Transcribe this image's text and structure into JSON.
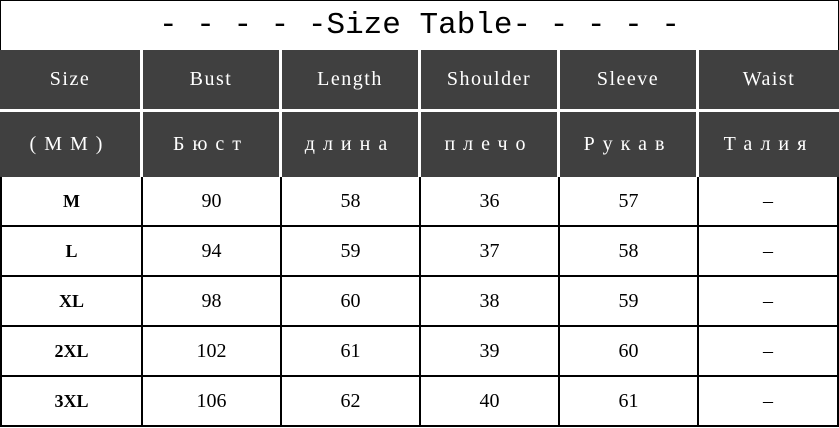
{
  "title": "- - - - -Size Table- - - - -",
  "header_en": [
    "Size",
    "Bust",
    "Length",
    "Shoulder",
    "Sleeve",
    "Waist"
  ],
  "header_ru": [
    "(MM)",
    "Бюст",
    "длина",
    "плечо",
    "Рукав",
    "Талия"
  ],
  "rows": [
    [
      "M",
      "90",
      "58",
      "36",
      "57",
      "–"
    ],
    [
      "L",
      "94",
      "59",
      "37",
      "58",
      "–"
    ],
    [
      "XL",
      "98",
      "60",
      "38",
      "59",
      "–"
    ],
    [
      "2XL",
      "102",
      "61",
      "39",
      "60",
      "–"
    ],
    [
      "3XL",
      "106",
      "62",
      "40",
      "61",
      "–"
    ]
  ],
  "colors": {
    "header_bg": "#404040",
    "header_text": "#ffffff",
    "border": "#000000"
  }
}
